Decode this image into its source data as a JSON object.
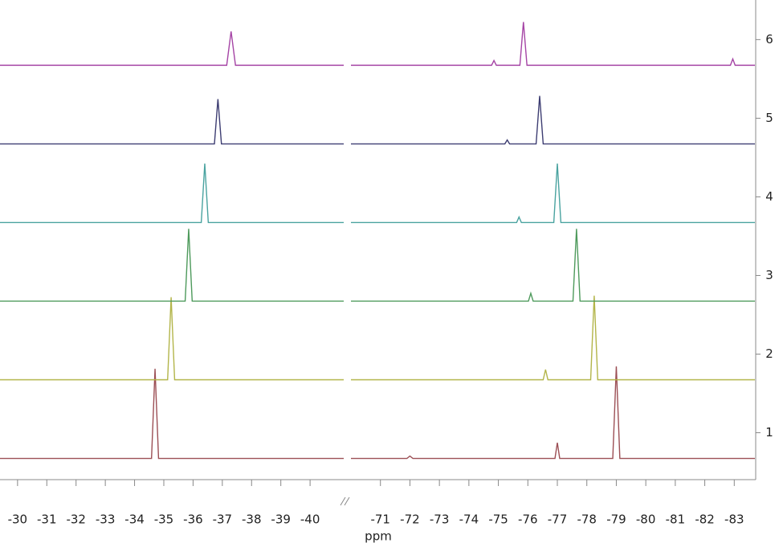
{
  "chart_data": [
    {
      "type": "line",
      "xlim": [
        -29.4,
        -41.15
      ],
      "xticks": [
        -30,
        -31,
        -32,
        -33,
        -34,
        -35,
        -36,
        -37,
        -38,
        -39,
        -40
      ],
      "ylim": [
        0.4,
        6.5
      ],
      "xlabel": "ppm",
      "series": [
        {
          "color": "#9c4f55",
          "x": [
            -29.4,
            -34.58,
            -34.7,
            -34.82,
            -41.15
          ],
          "values": [
            0.67,
            0.67,
            1.81,
            0.67,
            0.67
          ]
        },
        {
          "color": "#b3b54a",
          "x": [
            -29.4,
            -35.13,
            -35.25,
            -35.37,
            -41.15
          ],
          "values": [
            1.67,
            1.67,
            2.72,
            1.67,
            1.67
          ]
        },
        {
          "color": "#4e9a5c",
          "x": [
            -29.4,
            -35.73,
            -35.85,
            -35.97,
            -41.15
          ],
          "values": [
            2.67,
            2.67,
            3.59,
            2.67,
            2.67
          ]
        },
        {
          "color": "#4aa3a0",
          "x": [
            -29.4,
            -36.28,
            -36.4,
            -36.52,
            -41.15
          ],
          "values": [
            3.67,
            3.67,
            4.42,
            3.67,
            3.67
          ]
        },
        {
          "color": "#3d3d72",
          "x": [
            -29.4,
            -36.73,
            -36.85,
            -36.97,
            -41.15
          ],
          "values": [
            4.67,
            4.67,
            5.24,
            4.67,
            4.67
          ]
        },
        {
          "color": "#a544a5",
          "x": [
            -29.4,
            -37.15,
            -37.3,
            -37.45,
            -41.15
          ],
          "values": [
            5.67,
            5.67,
            6.1,
            5.67,
            5.67
          ]
        }
      ]
    },
    {
      "type": "line",
      "xlim": [
        -70,
        -83.7
      ],
      "xticks": [
        -71,
        -72,
        -73,
        -74,
        -75,
        -76,
        -77,
        -78,
        -79,
        -80,
        -81,
        -82,
        -83
      ],
      "ylim": [
        0.4,
        6.5
      ],
      "series": [
        {
          "name": "1",
          "color": "#9c4f55",
          "x": [
            -70,
            -71.9,
            -72.0,
            -72.1,
            -76.92,
            -77.0,
            -77.08,
            -78.88,
            -79.0,
            -79.12,
            -83.7
          ],
          "values": [
            0.67,
            0.67,
            0.7,
            0.67,
            0.67,
            0.87,
            0.67,
            0.67,
            1.84,
            0.67,
            0.67
          ]
        },
        {
          "name": "2",
          "color": "#b3b54a",
          "x": [
            -70,
            -76.52,
            -76.6,
            -76.68,
            -78.13,
            -78.25,
            -78.37,
            -83.7
          ],
          "values": [
            1.67,
            1.67,
            1.8,
            1.67,
            1.67,
            2.74,
            1.67,
            1.67
          ]
        },
        {
          "name": "3",
          "color": "#4e9a5c",
          "x": [
            -70,
            -76.02,
            -76.1,
            -76.18,
            -77.53,
            -77.65,
            -77.77,
            -83.7
          ],
          "values": [
            2.67,
            2.67,
            2.77,
            2.67,
            2.67,
            3.59,
            2.67,
            2.67
          ]
        },
        {
          "name": "4",
          "color": "#4aa3a0",
          "x": [
            -70,
            -75.62,
            -75.7,
            -75.78,
            -76.88,
            -77.0,
            -77.12,
            -83.7
          ],
          "values": [
            3.67,
            3.67,
            3.74,
            3.67,
            3.67,
            4.42,
            3.67,
            3.67
          ]
        },
        {
          "name": "5",
          "color": "#3d3d72",
          "x": [
            -70,
            -75.22,
            -75.3,
            -75.38,
            -76.28,
            -76.4,
            -76.52,
            -83.7
          ],
          "values": [
            4.67,
            4.67,
            4.72,
            4.67,
            4.67,
            5.28,
            4.67,
            4.67
          ]
        },
        {
          "name": "6",
          "color": "#a544a5",
          "x": [
            -70,
            -74.77,
            -74.85,
            -74.93,
            -75.73,
            -75.85,
            -75.97,
            -82.87,
            -82.95,
            -83.03,
            -83.7
          ],
          "values": [
            5.67,
            5.67,
            5.73,
            5.67,
            5.67,
            6.22,
            5.67,
            5.67,
            5.75,
            5.67,
            5.67
          ]
        }
      ]
    }
  ]
}
